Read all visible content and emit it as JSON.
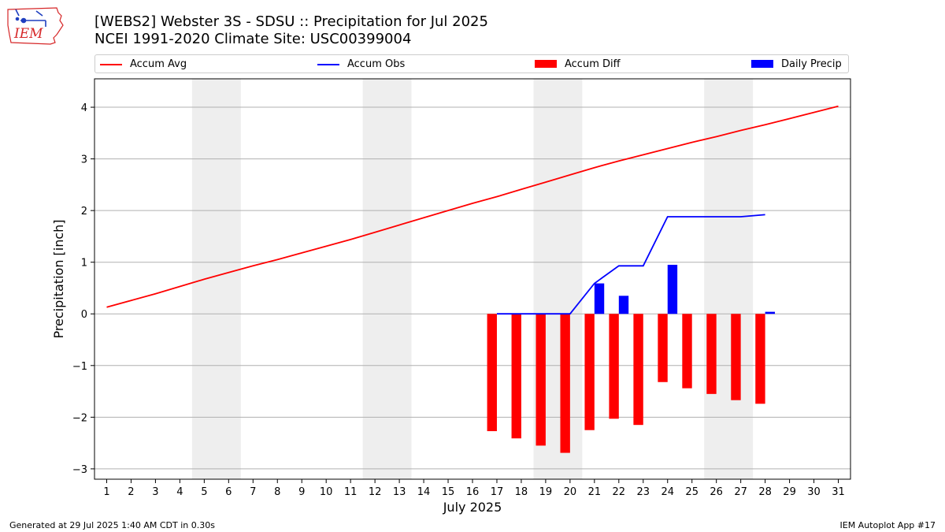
{
  "header": {
    "title_line1": "[WEBS2] Webster 3S - SDSU :: Precipitation for Jul 2025",
    "title_line2": "NCEI 1991-2020 Climate Site: USC00399004"
  },
  "logo": {
    "text": "IEM",
    "color": "#d62728"
  },
  "legend": {
    "items": [
      {
        "label": "Accum Avg",
        "kind": "line",
        "color": "#ff0000"
      },
      {
        "label": "Accum Obs",
        "kind": "line",
        "color": "#0000ff"
      },
      {
        "label": "Accum Diff",
        "kind": "bar",
        "color": "#ff0000"
      },
      {
        "label": "Daily Precip",
        "kind": "bar",
        "color": "#0000ff"
      }
    ]
  },
  "footer": {
    "left": "Generated at 29 Jul 2025 1:40 AM CDT in 0.30s",
    "right": "IEM Autoplot App #17"
  },
  "chart_data": {
    "type": "bar",
    "xlabel": "July 2025",
    "ylabel": "Precipitation [inch]",
    "xlim": [
      0.5,
      31.5
    ],
    "ylim": [
      -3.2,
      4.55
    ],
    "x_ticks": [
      1,
      2,
      3,
      4,
      5,
      6,
      7,
      8,
      9,
      10,
      11,
      12,
      13,
      14,
      15,
      16,
      17,
      18,
      19,
      20,
      21,
      22,
      23,
      24,
      25,
      26,
      27,
      28,
      29,
      30,
      31
    ],
    "y_ticks": [
      -3,
      -2,
      -1,
      0,
      1,
      2,
      3,
      4
    ],
    "y_tick_labels": [
      "−3",
      "−2",
      "−1",
      "0",
      "1",
      "2",
      "3",
      "4"
    ],
    "grid": "y",
    "legend_position": "top",
    "weekend_shading": [
      [
        5,
        6
      ],
      [
        12,
        13
      ],
      [
        19,
        20
      ],
      [
        26,
        27
      ]
    ],
    "shade_color": "#eeeeee",
    "series": [
      {
        "name": "Accum Avg",
        "kind": "line",
        "color": "#ff0000",
        "x": [
          1,
          2,
          3,
          4,
          5,
          6,
          7,
          8,
          9,
          10,
          11,
          12,
          13,
          14,
          15,
          16,
          17,
          18,
          19,
          20,
          21,
          22,
          23,
          24,
          25,
          26,
          27,
          28,
          29,
          30,
          31
        ],
        "values": [
          0.13,
          0.26,
          0.39,
          0.53,
          0.67,
          0.8,
          0.93,
          1.05,
          1.18,
          1.31,
          1.44,
          1.58,
          1.72,
          1.86,
          2.0,
          2.14,
          2.27,
          2.41,
          2.55,
          2.69,
          2.83,
          2.96,
          3.08,
          3.2,
          3.32,
          3.43,
          3.55,
          3.66,
          3.78,
          3.9,
          4.02
        ]
      },
      {
        "name": "Accum Obs",
        "kind": "line",
        "color": "#0000ff",
        "x": [
          17,
          18,
          19,
          20,
          21,
          22,
          23,
          24,
          25,
          26,
          27,
          28
        ],
        "values": [
          0,
          0,
          0,
          0,
          0.59,
          0.93,
          0.93,
          1.88,
          1.88,
          1.88,
          1.88,
          1.92
        ]
      },
      {
        "name": "Accum Diff",
        "kind": "bar",
        "color": "#ff0000",
        "offset": -0.2,
        "x": [
          17,
          18,
          19,
          20,
          21,
          22,
          23,
          24,
          25,
          26,
          27,
          28
        ],
        "values": [
          -2.27,
          -2.41,
          -2.55,
          -2.69,
          -2.25,
          -2.03,
          -2.15,
          -1.32,
          -1.44,
          -1.55,
          -1.67,
          -1.74
        ]
      },
      {
        "name": "Daily Precip",
        "kind": "bar",
        "color": "#0000ff",
        "offset": 0.2,
        "x": [
          17,
          18,
          19,
          20,
          21,
          22,
          23,
          24,
          25,
          26,
          27,
          28
        ],
        "values": [
          0,
          0,
          0,
          0,
          0.59,
          0.35,
          0,
          0.95,
          0,
          0,
          0,
          0.04
        ]
      }
    ]
  }
}
